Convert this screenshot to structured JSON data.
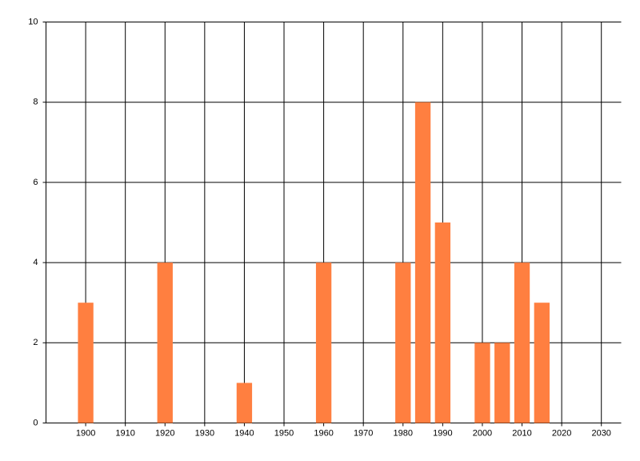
{
  "chart_data": {
    "type": "bar",
    "color": "#ff7f40",
    "x": [
      1900,
      1920,
      1940,
      1960,
      1980,
      1985,
      1990,
      2000,
      2005,
      2010,
      2015
    ],
    "values": [
      3,
      4,
      1,
      4,
      4,
      8,
      5,
      2,
      2,
      4,
      3
    ],
    "xlim": [
      1890,
      2035
    ],
    "xticks": [
      1900,
      1910,
      1920,
      1930,
      1940,
      1950,
      1960,
      1970,
      1980,
      1990,
      2000,
      2010,
      2020,
      2030
    ],
    "ylim": [
      0,
      10
    ],
    "yticks": [
      0,
      2,
      4,
      6,
      8,
      10
    ],
    "grid": true
  }
}
